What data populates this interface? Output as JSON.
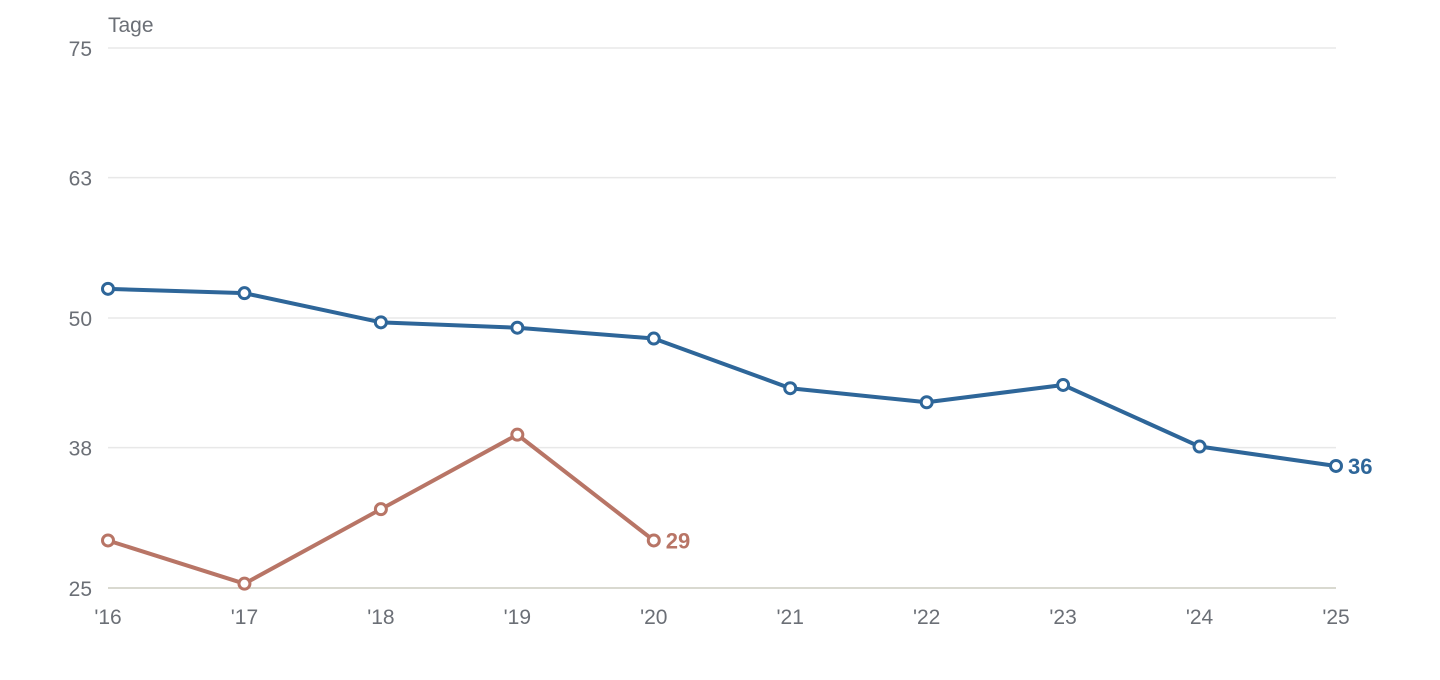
{
  "chart_data": {
    "type": "line",
    "ylabel": "Tage",
    "ylim": [
      25,
      75
    ],
    "y_ticks": [
      "25",
      "38",
      "50",
      "63",
      "75"
    ],
    "categories": [
      "'16",
      "'17",
      "'18",
      "'19",
      "'20",
      "'21",
      "'22",
      "'23",
      "'24",
      "'25"
    ],
    "grid": true,
    "series": [
      {
        "color": "#2e6699",
        "values": [
          52.7,
          52.3,
          49.6,
          49.1,
          48.1,
          43.5,
          42.2,
          43.8,
          38.1,
          36.3
        ],
        "end_label": "36"
      },
      {
        "color": "#b87566",
        "values": [
          29.4,
          25.4,
          32.3,
          39.2,
          29.4,
          null,
          null,
          null,
          null,
          null
        ],
        "end_label": "29"
      }
    ]
  }
}
